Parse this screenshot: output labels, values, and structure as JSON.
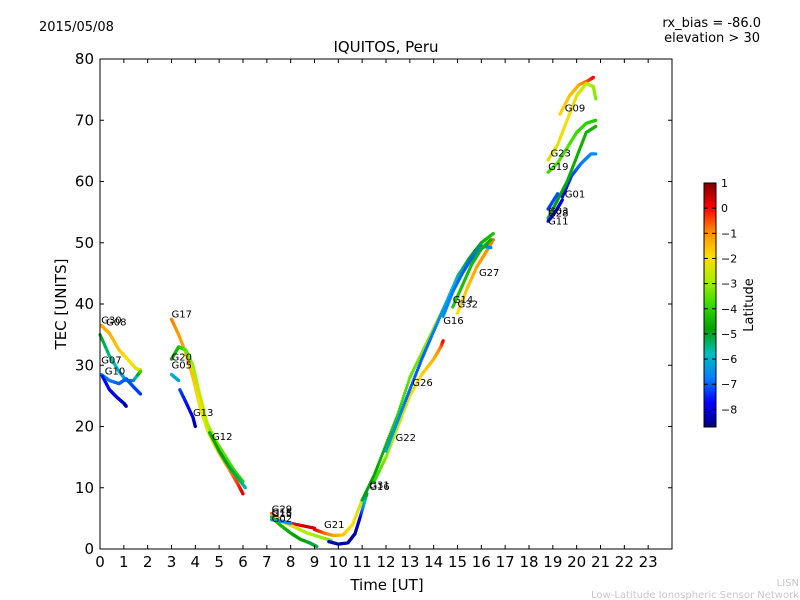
{
  "header": {
    "date": "2015/05/08",
    "rx_bias": "rx_bias = -86.0",
    "elevation": "elevation > 30"
  },
  "footer": {
    "line1": "LISN",
    "line2": "Low-Latitude Ionospheric Sensor Network"
  },
  "chart_data": {
    "type": "scatter",
    "title": "IQUITOS, Peru",
    "xlabel": "Time [UT]",
    "ylabel": "TEC [UNITS]",
    "xlim": [
      0,
      24
    ],
    "ylim": [
      0,
      80
    ],
    "xticks": [
      0,
      1,
      2,
      3,
      4,
      5,
      6,
      7,
      8,
      9,
      10,
      11,
      12,
      13,
      14,
      15,
      16,
      17,
      18,
      19,
      20,
      21,
      22,
      23
    ],
    "yticks": [
      0,
      10,
      20,
      30,
      40,
      50,
      60,
      70,
      80
    ],
    "grid": false,
    "colorbar": {
      "label": "Latitude",
      "min": -8.7,
      "max": 1,
      "ticks": [
        1,
        0,
        -1,
        -2,
        -3,
        -4,
        -5,
        -6,
        -7,
        -8
      ],
      "colormap": [
        "#00007f",
        "#0000ff",
        "#007fff",
        "#00bfbf",
        "#00a000",
        "#33dd00",
        "#aaee00",
        "#ffdd00",
        "#ff8c00",
        "#ff0000",
        "#7f0000"
      ]
    },
    "series": [
      {
        "name": "G30",
        "points": [
          [
            0.05,
            36.5
          ],
          [
            0.4,
            35.2
          ],
          [
            0.8,
            32.5
          ],
          [
            1.2,
            30.8
          ],
          [
            1.5,
            29.5
          ],
          [
            1.7,
            29.2
          ]
        ],
        "lat": [
          -1.2,
          -1.4,
          -1.6,
          -2.0,
          -2.2,
          -2.4
        ]
      },
      {
        "name": "G08",
        "points": [
          [
            0.0,
            35.0
          ],
          [
            0.4,
            31.5
          ],
          [
            0.8,
            29.0
          ],
          [
            1.1,
            27.5
          ],
          [
            1.4,
            27.5
          ],
          [
            1.7,
            29.0
          ]
        ],
        "lat": [
          -5.0,
          -5.5,
          -6.0,
          -6.4,
          -7.0,
          -4.0
        ]
      },
      {
        "name": "G07",
        "points": [
          [
            0.05,
            28.5
          ],
          [
            0.4,
            27.5
          ],
          [
            0.8,
            27.0
          ],
          [
            1.1,
            27.8
          ],
          [
            1.4,
            26.5
          ],
          [
            1.7,
            25.3
          ]
        ],
        "lat": [
          -6.5,
          -6.8,
          -7.0,
          -7.0,
          -7.2,
          -7.3
        ]
      },
      {
        "name": "G10",
        "points": [
          [
            0.1,
            28.2
          ],
          [
            0.4,
            26.0
          ],
          [
            0.7,
            24.8
          ],
          [
            1.0,
            23.8
          ],
          [
            1.1,
            23.3
          ]
        ],
        "lat": [
          -7.6,
          -7.8,
          -8.0,
          -8.2,
          -8.4
        ]
      },
      {
        "name": "G17",
        "points": [
          [
            3.0,
            37.5
          ],
          [
            3.3,
            35.0
          ],
          [
            3.6,
            32.0
          ],
          [
            3.9,
            28.0
          ],
          [
            4.2,
            23.0
          ],
          [
            4.5,
            19.5
          ],
          [
            4.8,
            17.0
          ],
          [
            5.1,
            15.0
          ],
          [
            5.5,
            12.5
          ],
          [
            5.8,
            10.5
          ],
          [
            6.0,
            9.0
          ]
        ],
        "lat": [
          -0.8,
          -1.1,
          -1.3,
          -1.6,
          -2.0,
          -2.2,
          -2.1,
          -1.5,
          -0.8,
          -0.3,
          0.2
        ]
      },
      {
        "name": "G20",
        "points": [
          [
            3.0,
            31.0
          ],
          [
            3.3,
            33.0
          ],
          [
            3.6,
            32.5
          ],
          [
            3.9,
            30.0
          ],
          [
            4.2,
            25.0
          ],
          [
            4.5,
            20.5
          ],
          [
            4.8,
            18.0
          ],
          [
            5.2,
            15.5
          ],
          [
            5.6,
            13.0
          ],
          [
            6.0,
            11.0
          ]
        ],
        "lat": [
          -4.6,
          -4.4,
          -3.5,
          -3.0,
          -2.6,
          -2.8,
          -3.3,
          -3.6,
          -3.8,
          -4.0
        ]
      },
      {
        "name": "G05",
        "points": [
          [
            3.0,
            28.5
          ],
          [
            3.3,
            27.5
          ]
        ],
        "lat": [
          -6.0,
          -6.2
        ]
      },
      {
        "name": "G13",
        "points": [
          [
            3.35,
            26.0
          ],
          [
            3.6,
            24.0
          ],
          [
            3.9,
            21.5
          ],
          [
            4.0,
            20.0
          ]
        ],
        "lat": [
          -7.2,
          -7.6,
          -8.0,
          -8.4
        ]
      },
      {
        "name": "G12",
        "points": [
          [
            4.6,
            19.0
          ],
          [
            5.0,
            16.0
          ],
          [
            5.4,
            13.5
          ],
          [
            5.8,
            11.5
          ],
          [
            6.1,
            10.0
          ]
        ],
        "lat": [
          -4.6,
          -4.8,
          -5.0,
          -5.3,
          -5.6
        ]
      },
      {
        "name": "G29",
        "points": [
          [
            7.2,
            5.8
          ],
          [
            7.6,
            4.6
          ],
          [
            8.0,
            4.2
          ],
          [
            8.5,
            3.8
          ],
          [
            9.0,
            3.4
          ]
        ],
        "lat": [
          -0.6,
          -0.2,
          0.0,
          0.3,
          0.5
        ]
      },
      {
        "name": "G15",
        "points": [
          [
            7.2,
            5.4
          ],
          [
            7.7,
            4.4
          ],
          [
            8.2,
            3.5
          ],
          [
            8.7,
            2.6
          ],
          [
            9.2,
            2.0
          ],
          [
            9.7,
            1.4
          ]
        ],
        "lat": [
          -2.1,
          -2.4,
          -2.6,
          -2.8,
          -3.0,
          -3.2
        ]
      },
      {
        "name": "G18",
        "points": [
          [
            7.2,
            5.2
          ],
          [
            7.6,
            3.8
          ],
          [
            8.0,
            2.6
          ],
          [
            8.4,
            1.6
          ],
          [
            8.8,
            1.0
          ],
          [
            9.1,
            0.4
          ]
        ],
        "lat": [
          -4.3,
          -4.5,
          -4.6,
          -4.8,
          -5.0,
          -5.2
        ]
      },
      {
        "name": "G02",
        "points": [
          [
            7.2,
            4.8
          ],
          [
            7.5,
            4.6
          ],
          [
            8.0,
            4.2
          ]
        ],
        "lat": [
          -6.2,
          -6.3,
          -6.5
        ]
      },
      {
        "name": "G21",
        "points": [
          [
            9.0,
            3.2
          ],
          [
            9.4,
            2.6
          ],
          [
            9.8,
            2.2
          ],
          [
            10.2,
            2.3
          ],
          [
            10.6,
            4.0
          ],
          [
            11.0,
            8.0
          ]
        ],
        "lat": [
          0.2,
          -0.6,
          -1.2,
          -1.6,
          -2.0,
          -2.5
        ]
      },
      {
        "name": "G31",
        "points": [
          [
            9.6,
            1.2
          ],
          [
            10.0,
            0.8
          ],
          [
            10.4,
            1.0
          ],
          [
            10.7,
            2.5
          ],
          [
            10.9,
            5.0
          ],
          [
            11.2,
            9.0
          ]
        ],
        "lat": [
          -8.0,
          -8.3,
          -8.5,
          -8.4,
          -8.0,
          -5.0
        ]
      },
      {
        "name": "G16",
        "points": [
          [
            11.0,
            8.0
          ],
          [
            11.5,
            12.0
          ],
          [
            12.0,
            17.0
          ],
          [
            12.5,
            22.0
          ],
          [
            13.0,
            28.0
          ],
          [
            13.5,
            32.0
          ],
          [
            14.0,
            36.0
          ],
          [
            14.5,
            40.0
          ],
          [
            15.0,
            44.0
          ],
          [
            15.5,
            47.0
          ],
          [
            16.0,
            49.0
          ],
          [
            16.5,
            50.5
          ]
        ],
        "lat": [
          -5.0,
          -4.8,
          -4.5,
          -4.0,
          -3.5,
          -3.2,
          -3.0,
          -3.2,
          -3.6,
          -4.2,
          -4.6,
          -5.0
        ]
      },
      {
        "name": "G26",
        "points": [
          [
            11.5,
            11.0
          ],
          [
            12.0,
            15.0
          ],
          [
            12.5,
            20.0
          ],
          [
            13.0,
            25.0
          ],
          [
            13.5,
            28.5
          ],
          [
            14.0,
            31.0
          ],
          [
            14.3,
            33.0
          ],
          [
            14.4,
            34.0
          ]
        ],
        "lat": [
          -4.0,
          -3.2,
          -2.6,
          -2.2,
          -1.8,
          -1.4,
          -0.8,
          0.0
        ]
      },
      {
        "name": "G22",
        "points": [
          [
            12.0,
            16.0
          ],
          [
            12.5,
            21.0
          ],
          [
            13.0,
            26.0
          ],
          [
            13.5,
            31.0
          ],
          [
            14.0,
            35.5
          ],
          [
            14.5,
            40.0
          ],
          [
            15.0,
            44.5
          ],
          [
            15.5,
            47.5
          ],
          [
            16.0,
            50.0
          ],
          [
            16.5,
            51.5
          ]
        ],
        "lat": [
          -6.2,
          -6.6,
          -7.0,
          -7.0,
          -6.8,
          -6.2,
          -5.6,
          -5.0,
          -4.6,
          -4.3
        ]
      },
      {
        "name": "G27",
        "points": [
          [
            15.0,
            38.5
          ],
          [
            15.4,
            42.5
          ],
          [
            15.8,
            46.0
          ],
          [
            16.2,
            48.5
          ],
          [
            16.5,
            50.5
          ]
        ],
        "lat": [
          -2.0,
          -1.6,
          -1.2,
          -1.0,
          -0.8
        ]
      },
      {
        "name": "G14",
        "points": [
          [
            14.4,
            38.0
          ],
          [
            14.8,
            42.0
          ],
          [
            15.2,
            45.0
          ],
          [
            15.6,
            47.5
          ],
          [
            16.0,
            49.5
          ],
          [
            16.4,
            49.2
          ]
        ],
        "lat": [
          -6.6,
          -6.8,
          -7.0,
          -7.0,
          -6.8,
          -6.6
        ]
      },
      {
        "name": "G32",
        "points": [
          [
            14.8,
            39.5
          ],
          [
            15.2,
            43.0
          ],
          [
            15.6,
            46.5
          ],
          [
            16.0,
            49.0
          ],
          [
            16.4,
            50.5
          ]
        ],
        "lat": [
          -4.2,
          -4.3,
          -4.4,
          -4.5,
          -4.6
        ]
      },
      {
        "name": "G09",
        "points": [
          [
            19.3,
            71.0
          ],
          [
            19.7,
            74.0
          ],
          [
            20.1,
            75.8
          ],
          [
            20.5,
            76.5
          ],
          [
            20.7,
            77.0
          ]
        ],
        "lat": [
          -1.8,
          -1.6,
          -1.3,
          -0.5,
          0.0
        ]
      },
      {
        "name": "G23",
        "points": [
          [
            18.8,
            63.5
          ],
          [
            19.2,
            66.0
          ],
          [
            19.6,
            70.0
          ],
          [
            20.0,
            74.0
          ],
          [
            20.4,
            76.0
          ],
          [
            20.7,
            75.5
          ],
          [
            20.8,
            73.5
          ]
        ],
        "lat": [
          -2.4,
          -2.2,
          -2.0,
          -2.2,
          -2.6,
          -3.0,
          -3.2
        ]
      },
      {
        "name": "G19",
        "points": [
          [
            18.8,
            61.5
          ],
          [
            19.2,
            63.0
          ],
          [
            19.6,
            65.5
          ],
          [
            20.0,
            68.0
          ],
          [
            20.4,
            69.5
          ],
          [
            20.8,
            70.0
          ]
        ],
        "lat": [
          -3.8,
          -3.6,
          -3.6,
          -3.8,
          -4.0,
          -4.2
        ]
      },
      {
        "name": "G01",
        "points": [
          [
            19.4,
            57.5
          ],
          [
            19.8,
            61.0
          ],
          [
            20.2,
            63.0
          ],
          [
            20.6,
            64.5
          ],
          [
            20.8,
            64.5
          ]
        ],
        "lat": [
          -8.0,
          -7.2,
          -6.8,
          -6.6,
          -6.5
        ]
      },
      {
        "name": "G03",
        "points": [
          [
            18.8,
            54.0
          ],
          [
            19.2,
            57.0
          ],
          [
            19.6,
            60.0
          ],
          [
            20.0,
            64.0
          ],
          [
            20.4,
            68.0
          ],
          [
            20.8,
            69.0
          ]
        ],
        "lat": [
          -5.2,
          -4.8,
          -4.6,
          -4.6,
          -4.5,
          -4.5
        ]
      },
      {
        "name": "G11",
        "points": [
          [
            18.8,
            53.5
          ],
          [
            19.1,
            55.0
          ],
          [
            19.4,
            57.0
          ]
        ],
        "lat": [
          -7.6,
          -7.8,
          -8.0
        ]
      },
      {
        "name": "G28",
        "points": [
          [
            18.8,
            55.5
          ],
          [
            19.2,
            58.0
          ]
        ],
        "lat": [
          -7.3,
          -7.1
        ]
      }
    ],
    "labels": [
      {
        "text": "G30",
        "x": 0.05,
        "y": 36.8
      },
      {
        "text": "G08",
        "x": 0.25,
        "y": 36.5
      },
      {
        "text": "G07",
        "x": 0.05,
        "y": 30.3
      },
      {
        "text": "G10",
        "x": 0.2,
        "y": 28.5
      },
      {
        "text": "G17",
        "x": 3.0,
        "y": 37.8
      },
      {
        "text": "G20",
        "x": 3.0,
        "y": 30.8
      },
      {
        "text": "G05",
        "x": 3.0,
        "y": 29.5
      },
      {
        "text": "G13",
        "x": 3.9,
        "y": 21.7
      },
      {
        "text": "G12",
        "x": 4.7,
        "y": 17.8
      },
      {
        "text": "G29",
        "x": 7.2,
        "y": 6.0
      },
      {
        "text": "G15",
        "x": 7.2,
        "y": 5.2
      },
      {
        "text": "G18",
        "x": 7.2,
        "y": 5.5
      },
      {
        "text": "G02",
        "x": 7.2,
        "y": 4.4
      },
      {
        "text": "G21",
        "x": 9.4,
        "y": 3.4
      },
      {
        "text": "G31",
        "x": 11.3,
        "y": 9.9
      },
      {
        "text": "G16",
        "x": 11.3,
        "y": 9.6
      },
      {
        "text": "G22",
        "x": 12.4,
        "y": 17.6
      },
      {
        "text": "G26",
        "x": 13.1,
        "y": 26.6
      },
      {
        "text": "G16",
        "x": 14.4,
        "y": 36.7
      },
      {
        "text": "G14",
        "x": 14.8,
        "y": 40.2
      },
      {
        "text": "G32",
        "x": 15.0,
        "y": 39.4
      },
      {
        "text": "G27",
        "x": 15.9,
        "y": 44.6
      },
      {
        "text": "G09",
        "x": 19.5,
        "y": 71.4
      },
      {
        "text": "G23",
        "x": 18.9,
        "y": 64.1
      },
      {
        "text": "G19",
        "x": 18.8,
        "y": 61.9
      },
      {
        "text": "G01",
        "x": 19.5,
        "y": 57.4
      },
      {
        "text": "G03",
        "x": 18.8,
        "y": 54.6
      },
      {
        "text": "G28",
        "x": 18.8,
        "y": 54.3
      },
      {
        "text": "G11",
        "x": 18.8,
        "y": 53.0
      }
    ]
  }
}
